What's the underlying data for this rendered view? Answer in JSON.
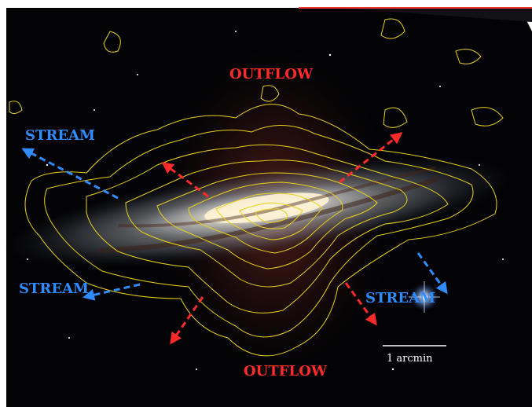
{
  "labels": {
    "outflow_top": "OUTFLOW",
    "outflow_bottom": "OUTFLOW",
    "stream_upper_left": "STREAM",
    "stream_lower_left": "STREAM",
    "stream_right": "STREAM"
  },
  "scale_bar": {
    "label": "1 arcmin"
  },
  "colors": {
    "outflow": "#ff2a2a",
    "stream": "#2f8cff",
    "contour": "#e8d21a",
    "background": "#000000",
    "scale_bar": "#ffffff"
  }
}
